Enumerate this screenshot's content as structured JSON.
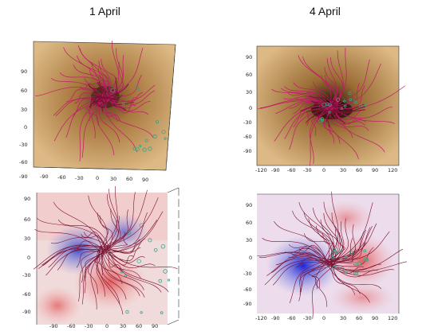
{
  "titles": {
    "left": "1 April",
    "right": "4 April"
  },
  "panels": [
    {
      "id": "p1",
      "kind": "euv",
      "yticks": [
        "90",
        "60",
        "30",
        "0",
        "-30",
        "-60",
        "-90"
      ],
      "xticks": [
        "-90",
        "-60",
        "-30",
        "0",
        "30",
        "60",
        "90"
      ]
    },
    {
      "id": "p2",
      "kind": "euv",
      "yticks": [
        "90",
        "60",
        "30",
        "0",
        "-30",
        "-60",
        "-90"
      ],
      "xticks": [
        "-120",
        "-90",
        "-60",
        "-30",
        "0",
        "30",
        "60",
        "90",
        "120"
      ]
    },
    {
      "id": "p3",
      "kind": "magnetogram",
      "yticks": [
        "90",
        "60",
        "30",
        "0",
        "-30",
        "-60",
        "-90"
      ],
      "xticks": [
        "-90",
        "-60",
        "-30",
        "0",
        "30",
        "60",
        "90"
      ]
    },
    {
      "id": "p4",
      "kind": "magnetogram",
      "yticks": [
        "90",
        "60",
        "30",
        "0",
        "-30",
        "-60",
        "-90"
      ],
      "xticks": [
        "-120",
        "-90",
        "-60",
        "-30",
        "0",
        "30",
        "60",
        "90",
        "120"
      ]
    }
  ],
  "colors": {
    "field_line": "#c2186b",
    "field_line_dark": "#7a1030",
    "open_footpoint": "#33a58a",
    "euv_base": "#d8b27a",
    "euv_dark": "#6b4420",
    "mag_pos": "#e05050",
    "mag_neg": "#3040c8"
  }
}
